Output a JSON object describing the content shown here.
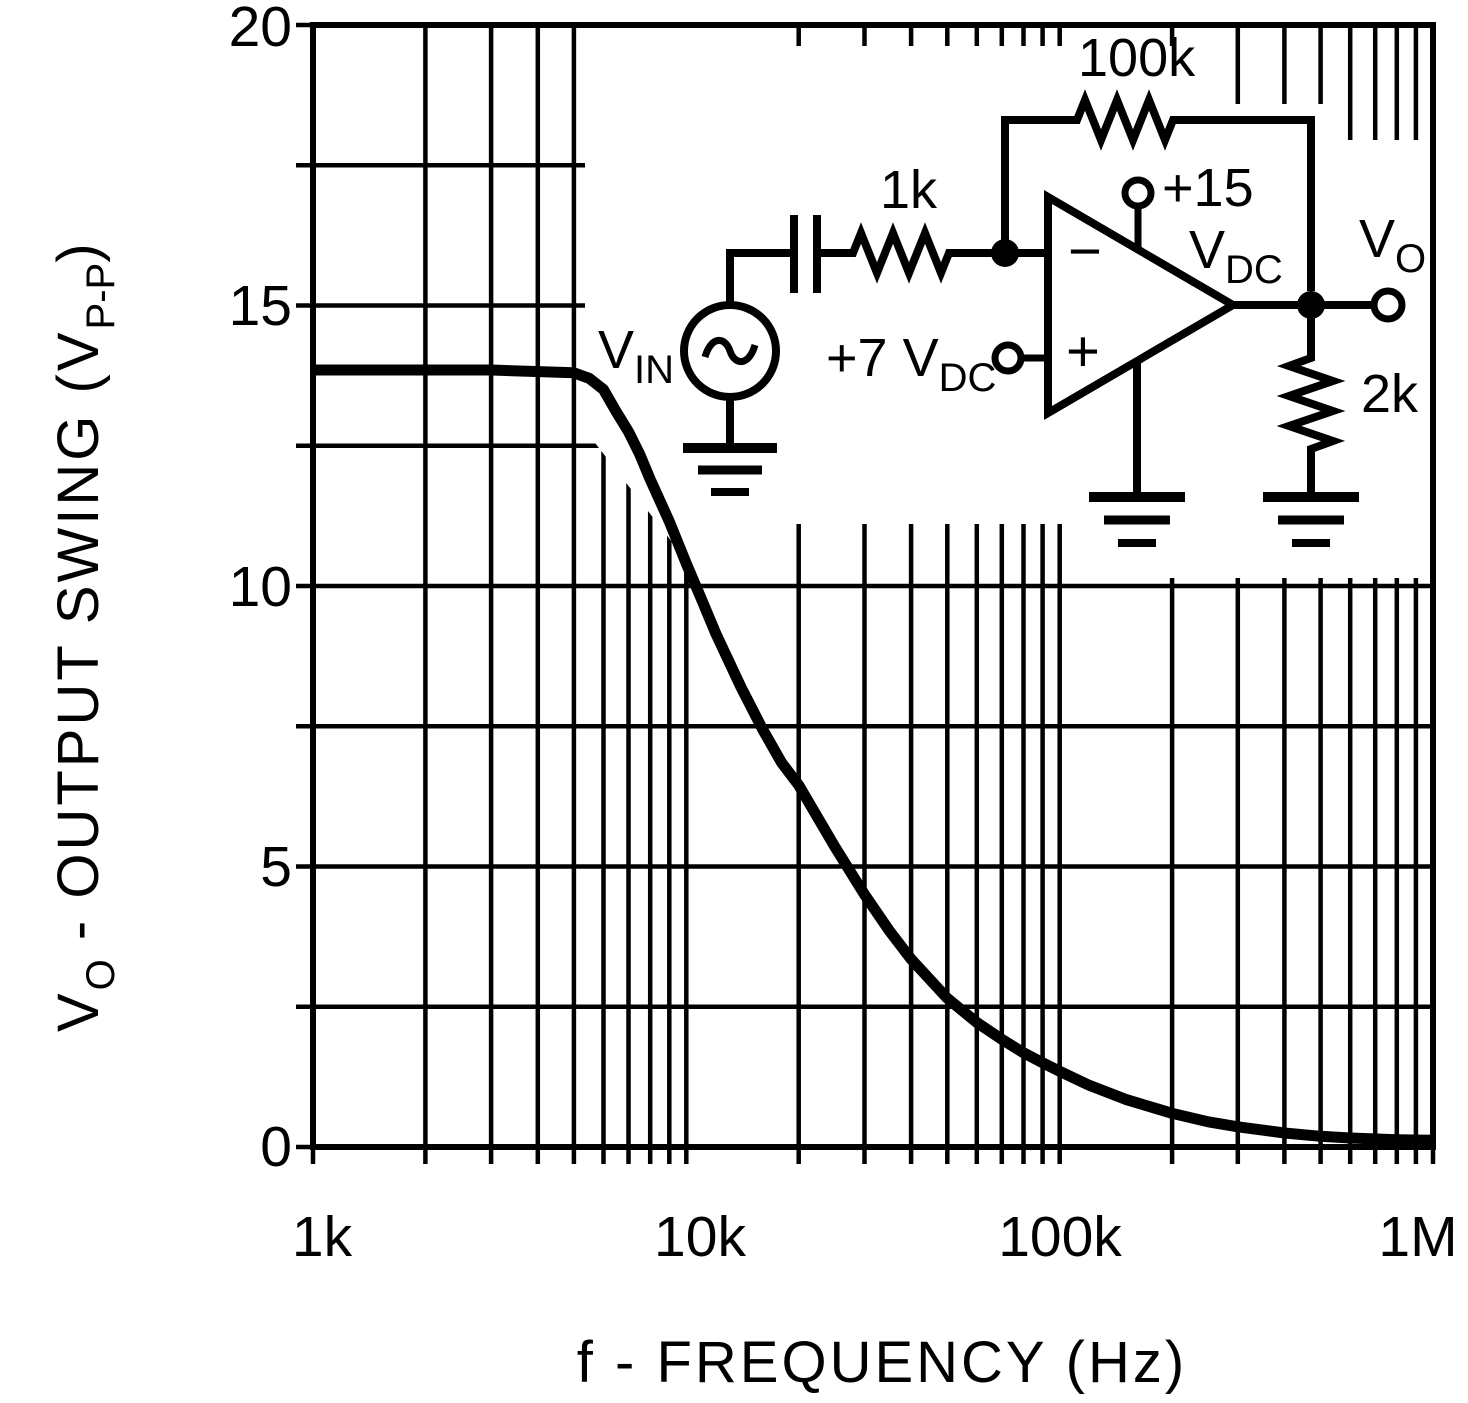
{
  "y_axis": {
    "ticks": [
      "20",
      "15",
      "10",
      "5",
      "0"
    ],
    "title": {
      "v": "V",
      "v_sub": "O",
      "rest": " - OUTPUT SWING (V",
      "rest_sub": "P-P",
      "close": ")"
    }
  },
  "x_axis": {
    "ticks": [
      "1k",
      "10k",
      "100k",
      "1M"
    ],
    "title": "f - FREQUENCY (Hz)"
  },
  "circuit": {
    "feedback_resistor": "100k",
    "input_resistor": "1k",
    "load_resistor": "2k",
    "source_label": {
      "v": "V",
      "sub": "IN"
    },
    "noninv_label": {
      "main": "+7 V",
      "sub": "DC"
    },
    "supply_value": "+15",
    "supply_unit": {
      "v": "V",
      "sub": "DC"
    },
    "output_label": {
      "v": "V",
      "sub": "O"
    },
    "opamp_minus": "−",
    "opamp_plus": "+"
  },
  "chart_data": {
    "type": "line",
    "title": "Output Swing vs Frequency",
    "xlabel": "f - FREQUENCY (Hz)",
    "ylabel": "VO - OUTPUT SWING (VP-P)",
    "x_scale": "log",
    "x_range": [
      1000,
      1000000
    ],
    "ylim": [
      0,
      20
    ],
    "x_tick_labels": [
      "1k",
      "10k",
      "100k",
      "1M"
    ],
    "y_tick_values": [
      0,
      5,
      10,
      15,
      20
    ],
    "y_gridlines": [
      0,
      2.5,
      5,
      7.5,
      10,
      12.5,
      15,
      17.5,
      20
    ],
    "x_gridlines": [
      1000,
      2000,
      3000,
      4000,
      5000,
      6000,
      7000,
      8000,
      9000,
      10000,
      20000,
      30000,
      40000,
      50000,
      60000,
      70000,
      80000,
      90000,
      100000,
      200000,
      300000,
      400000,
      500000,
      600000,
      700000,
      800000,
      900000,
      1000000
    ],
    "grid": "on",
    "legend": "none",
    "series": [
      {
        "name": "VO output swing (VP-P)",
        "points": [
          [
            1000,
            13.85
          ],
          [
            3000,
            13.85
          ],
          [
            5000,
            13.8
          ],
          [
            5500,
            13.7
          ],
          [
            6000,
            13.5
          ],
          [
            6500,
            13.1
          ],
          [
            7000,
            12.75
          ],
          [
            7500,
            12.35
          ],
          [
            8000,
            11.9
          ],
          [
            9000,
            11.15
          ],
          [
            10000,
            10.4
          ],
          [
            11000,
            9.75
          ],
          [
            12000,
            9.15
          ],
          [
            14000,
            8.2
          ],
          [
            16000,
            7.45
          ],
          [
            18000,
            6.85
          ],
          [
            20000,
            6.45
          ],
          [
            25000,
            5.35
          ],
          [
            30000,
            4.5
          ],
          [
            35000,
            3.85
          ],
          [
            40000,
            3.35
          ],
          [
            50000,
            2.65
          ],
          [
            60000,
            2.22
          ],
          [
            70000,
            1.92
          ],
          [
            80000,
            1.68
          ],
          [
            90000,
            1.5
          ],
          [
            100000,
            1.35
          ],
          [
            120000,
            1.1
          ],
          [
            150000,
            0.85
          ],
          [
            200000,
            0.6
          ],
          [
            250000,
            0.45
          ],
          [
            300000,
            0.36
          ],
          [
            400000,
            0.25
          ],
          [
            500000,
            0.19
          ],
          [
            600000,
            0.16
          ],
          [
            800000,
            0.13
          ],
          [
            1000000,
            0.12
          ]
        ]
      }
    ]
  }
}
